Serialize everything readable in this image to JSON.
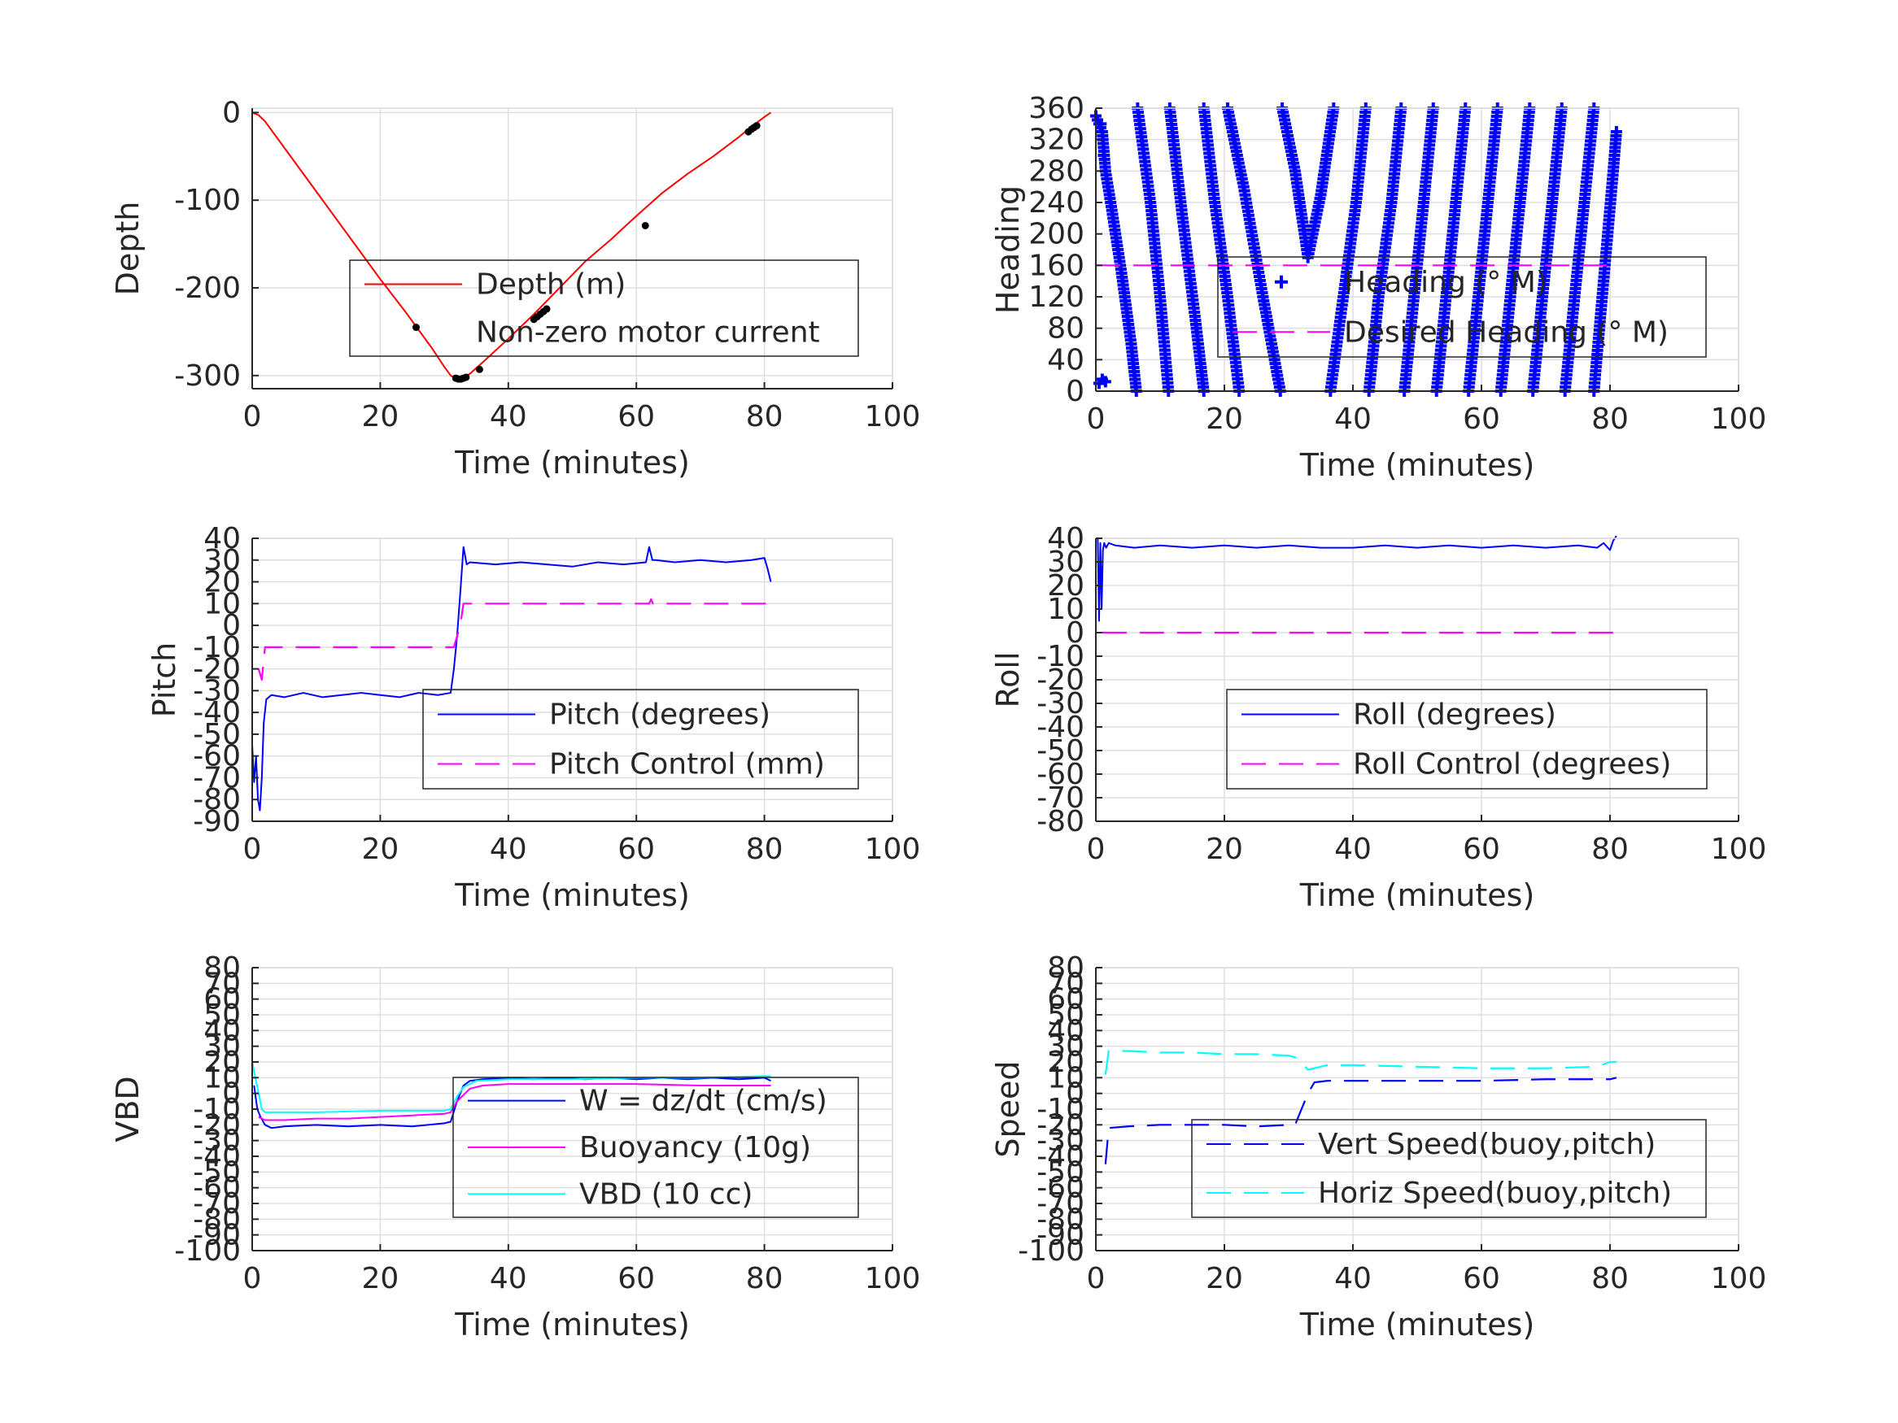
{
  "chart_data": [
    {
      "id": "depth",
      "type": "line",
      "xlabel": "Time (minutes)",
      "ylabel": "Depth",
      "xlim": [
        0,
        100
      ],
      "ylim": [
        -315,
        5
      ],
      "xticks": [
        0,
        20,
        40,
        60,
        80,
        100
      ],
      "yticks": [
        0,
        -100,
        -200,
        -300
      ],
      "grid": true,
      "legend": {
        "placement": "center-right"
      },
      "series": [
        {
          "name": "Depth (m)",
          "style": "line",
          "dash": "",
          "color": "#ff0000",
          "x": [
            0,
            1,
            2,
            4,
            8,
            12,
            16,
            20,
            24,
            26,
            28,
            30,
            31,
            32,
            33,
            34,
            36,
            40,
            44,
            48,
            52,
            56,
            60,
            64,
            68,
            72,
            76,
            78,
            80,
            81
          ],
          "y": [
            0,
            -3,
            -10,
            -30,
            -70,
            -110,
            -150,
            -190,
            -228,
            -248,
            -268,
            -290,
            -300,
            -304,
            -302,
            -298,
            -285,
            -258,
            -230,
            -200,
            -170,
            -145,
            -118,
            -92,
            -70,
            -50,
            -28,
            -16,
            -5,
            0
          ]
        },
        {
          "name": "Non-zero motor current",
          "style": "markers",
          "marker": "dot",
          "color": "#000000",
          "x": [
            25.6,
            31.8,
            32.2,
            32.6,
            33.0,
            33.4,
            35.5,
            44.0,
            44.5,
            45.0,
            45.5,
            46.0,
            61.4,
            77.5,
            78.0,
            78.4,
            78.8
          ],
          "y": [
            -245,
            -303,
            -304,
            -304,
            -303,
            -302,
            -293,
            -236,
            -233,
            -230,
            -227,
            -224,
            -129,
            -22,
            -19,
            -17,
            -15
          ]
        }
      ]
    },
    {
      "id": "heading",
      "type": "scatter",
      "xlabel": "Time (minutes)",
      "ylabel": "Heading",
      "xlim": [
        0,
        100
      ],
      "ylim": [
        0,
        360
      ],
      "xticks": [
        0,
        20,
        40,
        60,
        80,
        100
      ],
      "yticks": [
        0,
        40,
        80,
        120,
        160,
        200,
        240,
        280,
        320,
        360
      ],
      "grid": true,
      "legend": {
        "placement": "center-right"
      },
      "series": [
        {
          "name": "Heading (° M)",
          "style": "markers",
          "marker": "plus",
          "color": "#0000ff",
          "segments": [
            [
              [
                0,
                350
              ],
              [
                1,
                330
              ],
              [
                1.5,
                280
              ],
              [
                2.5,
                230
              ],
              [
                4,
                150
              ],
              [
                5.5,
                60
              ],
              [
                6.3,
                0
              ]
            ],
            [
              [
                6.5,
                360
              ],
              [
                8.5,
                240
              ],
              [
                10,
                120
              ],
              [
                11.3,
                0
              ]
            ],
            [
              [
                11.5,
                360
              ],
              [
                13.5,
                220
              ],
              [
                15.5,
                90
              ],
              [
                16.8,
                0
              ]
            ],
            [
              [
                16.8,
                360
              ],
              [
                18.5,
                240
              ],
              [
                20.5,
                120
              ],
              [
                22.3,
                0
              ]
            ],
            [
              [
                20.5,
                360
              ],
              [
                23,
                260
              ],
              [
                26,
                120
              ],
              [
                28.7,
                0
              ]
            ],
            [
              [
                29,
                360
              ],
              [
                31,
                280
              ],
              [
                33,
                170
              ],
              [
                35,
                250
              ],
              [
                37,
                360
              ]
            ],
            [
              [
                36.5,
                0
              ],
              [
                38.5,
                120
              ],
              [
                40.5,
                240
              ],
              [
                42,
                360
              ]
            ],
            [
              [
                42.5,
                0
              ],
              [
                44,
                120
              ],
              [
                46,
                240
              ],
              [
                47.5,
                360
              ]
            ],
            [
              [
                48,
                0
              ],
              [
                49.5,
                120
              ],
              [
                51,
                240
              ],
              [
                52.5,
                360
              ]
            ],
            [
              [
                53,
                0
              ],
              [
                54.5,
                120
              ],
              [
                56,
                240
              ],
              [
                57.5,
                360
              ]
            ],
            [
              [
                58,
                0
              ],
              [
                59.5,
                120
              ],
              [
                61,
                240
              ],
              [
                62.5,
                360
              ]
            ],
            [
              [
                63,
                0
              ],
              [
                64.5,
                120
              ],
              [
                66,
                240
              ],
              [
                67.5,
                360
              ]
            ],
            [
              [
                68,
                0
              ],
              [
                69.5,
                120
              ],
              [
                71,
                240
              ],
              [
                72.5,
                360
              ]
            ],
            [
              [
                73,
                0
              ],
              [
                74.5,
                120
              ],
              [
                76,
                240
              ],
              [
                77.5,
                360
              ]
            ],
            [
              [
                77.5,
                0
              ],
              [
                79,
                140
              ],
              [
                80.5,
                280
              ],
              [
                81,
                330
              ]
            ]
          ],
          "extra_points": [
            [
              0.5,
              10
            ],
            [
              1,
              15
            ],
            [
              1.5,
              12
            ],
            [
              0.8,
              340
            ],
            [
              1.2,
              300
            ]
          ]
        },
        {
          "name": "Desired Heading (° M)",
          "style": "line",
          "dash": "30 16",
          "color": "#ff00ff",
          "x": [
            0,
            81
          ],
          "y": [
            160,
            160
          ]
        }
      ]
    },
    {
      "id": "pitch",
      "type": "line",
      "xlabel": "Time (minutes)",
      "ylabel": "Pitch",
      "xlim": [
        0,
        100
      ],
      "ylim": [
        -90,
        40
      ],
      "xticks": [
        0,
        20,
        40,
        60,
        80,
        100
      ],
      "yticks": [
        -90,
        -80,
        -70,
        -60,
        -50,
        -40,
        -30,
        -20,
        -10,
        0,
        10,
        20,
        30,
        40
      ],
      "grid": true,
      "legend": {
        "placement": "center-right"
      },
      "series": [
        {
          "name": "Pitch (degrees)",
          "style": "line",
          "dash": "",
          "color": "#0000ff",
          "x": [
            0,
            0.3,
            0.6,
            0.9,
            1.2,
            1.5,
            1.8,
            2.2,
            3,
            5,
            8,
            11,
            14,
            17,
            20,
            23,
            26,
            29,
            31,
            31.5,
            32,
            32.5,
            33,
            33.5,
            34,
            38,
            42,
            46,
            50,
            54,
            58,
            61.5,
            62,
            62.5,
            63,
            66,
            70,
            74,
            78,
            80,
            80.5,
            81
          ],
          "y": [
            -55,
            -72,
            -60,
            -80,
            -85,
            -70,
            -45,
            -34,
            -32,
            -33,
            -31,
            -33,
            -32,
            -31,
            -32,
            -33,
            -31,
            -32,
            -31,
            -20,
            -5,
            15,
            36,
            28,
            29,
            28,
            29,
            28,
            27,
            29,
            28,
            29,
            36,
            30,
            30,
            29,
            30,
            29,
            30,
            31,
            26,
            20
          ]
        },
        {
          "name": "Pitch Control (mm)",
          "style": "line",
          "dash": "30 16",
          "color": "#ff00ff",
          "x": [
            1,
            1.5,
            2,
            5,
            10,
            15,
            20,
            25,
            30,
            31.5,
            32,
            32.5,
            33,
            35,
            45,
            55,
            62,
            62.3,
            62.6,
            65,
            75,
            81
          ],
          "y": [
            -20,
            -25,
            -10,
            -10,
            -10,
            -10,
            -10,
            -10,
            -10,
            -10,
            -5,
            0,
            10,
            10,
            10,
            10,
            10,
            12,
            10,
            10,
            10,
            10
          ]
        }
      ]
    },
    {
      "id": "roll",
      "type": "line",
      "xlabel": "Time (minutes)",
      "ylabel": "Roll",
      "xlim": [
        0,
        100
      ],
      "ylim": [
        -80,
        40
      ],
      "xticks": [
        0,
        20,
        40,
        60,
        80,
        100
      ],
      "yticks": [
        -80,
        -70,
        -60,
        -50,
        -40,
        -30,
        -20,
        -10,
        0,
        10,
        20,
        30,
        40
      ],
      "grid": true,
      "legend": {
        "placement": "center-right"
      },
      "series": [
        {
          "name": "Roll (degrees)",
          "style": "line",
          "dash": "",
          "color": "#0000ff",
          "x": [
            0.3,
            0.5,
            0.7,
            0.9,
            1.1,
            1.3,
            1.6,
            2,
            3,
            6,
            10,
            15,
            20,
            25,
            30,
            35,
            40,
            45,
            50,
            55,
            60,
            65,
            70,
            75,
            78,
            79,
            80,
            80.5,
            81
          ],
          "y": [
            40,
            5,
            38,
            10,
            35,
            38,
            36,
            38,
            37,
            36,
            37,
            36,
            37,
            36,
            37,
            36,
            36,
            37,
            36,
            37,
            36,
            37,
            36,
            37,
            36,
            38,
            35,
            39,
            41
          ]
        },
        {
          "name": "Roll Control (degrees)",
          "style": "line",
          "dash": "30 16",
          "color": "#ff00ff",
          "x": [
            1,
            81
          ],
          "y": [
            0,
            0
          ]
        }
      ]
    },
    {
      "id": "vbd",
      "type": "line",
      "xlabel": "Time (minutes)",
      "ylabel": "VBD",
      "xlim": [
        0,
        100
      ],
      "ylim": [
        -100,
        80
      ],
      "xticks": [
        0,
        20,
        40,
        60,
        80,
        100
      ],
      "yticks": [
        -100,
        -90,
        -80,
        -70,
        -60,
        -50,
        -40,
        -30,
        -20,
        -10,
        0,
        10,
        20,
        30,
        40,
        50,
        60,
        70,
        80
      ],
      "grid": true,
      "legend": {
        "placement": "center-right"
      },
      "series": [
        {
          "name": "W = dz/dt (cm/s)",
          "style": "line",
          "dash": "",
          "color": "#0000ff",
          "x": [
            0.3,
            0.8,
            1.3,
            2,
            3,
            5,
            10,
            15,
            20,
            25,
            30,
            31,
            32,
            33,
            34,
            36,
            40,
            44,
            48,
            52,
            56,
            60,
            64,
            68,
            72,
            76,
            80,
            81
          ],
          "y": [
            5,
            -10,
            -15,
            -20,
            -22,
            -21,
            -20,
            -21,
            -20,
            -21,
            -19,
            -18,
            -5,
            5,
            8,
            9,
            10,
            9,
            10,
            9,
            10,
            9,
            10,
            9,
            10,
            9,
            10,
            8
          ]
        },
        {
          "name": "Buoyancy (10g)",
          "style": "line",
          "dash": "",
          "color": "#ff00ff",
          "x": [
            1,
            2,
            5,
            10,
            15,
            20,
            25,
            30,
            31,
            32,
            34,
            36,
            40,
            50,
            60,
            70,
            80,
            81
          ],
          "y": [
            -15,
            -17,
            -17,
            -16,
            -16,
            -15,
            -14,
            -13,
            -12,
            -5,
            3,
            5,
            6,
            6,
            6,
            5,
            5,
            5
          ]
        },
        {
          "name": "VBD (10 cc)",
          "style": "line",
          "dash": "",
          "color": "#00ffff",
          "x": [
            0,
            0.5,
            1,
            1.5,
            2,
            5,
            10,
            20,
            30,
            31,
            32,
            33,
            35,
            40,
            50,
            60,
            70,
            80,
            81
          ],
          "y": [
            20,
            10,
            0,
            -10,
            -12,
            -12,
            -12,
            -11,
            -11,
            -10,
            -2,
            4,
            8,
            9,
            9,
            10,
            10,
            11,
            11
          ]
        }
      ]
    },
    {
      "id": "speed",
      "type": "line",
      "xlabel": "Time (minutes)",
      "ylabel": "Speed",
      "xlim": [
        0,
        100
      ],
      "ylim": [
        -100,
        80
      ],
      "xticks": [
        0,
        20,
        40,
        60,
        80,
        100
      ],
      "yticks": [
        -100,
        -90,
        -80,
        -70,
        -60,
        -50,
        -40,
        -30,
        -20,
        -10,
        0,
        10,
        20,
        30,
        40,
        50,
        60,
        70,
        80
      ],
      "grid": true,
      "legend": {
        "placement": "center-right"
      },
      "series": [
        {
          "name": "Vert Speed(buoy,pitch)",
          "style": "line",
          "dash": "30 16",
          "color": "#0000ff",
          "x": [
            1.5,
            2,
            5,
            10,
            15,
            20,
            25,
            30,
            31,
            32,
            33,
            34,
            36,
            40,
            50,
            60,
            70,
            80,
            81
          ],
          "y": [
            -45,
            -22,
            -21,
            -20,
            -20,
            -20,
            -21,
            -20,
            -20,
            -10,
            0,
            7,
            8,
            8,
            8,
            8,
            9,
            9,
            10
          ]
        },
        {
          "name": "Horiz Speed(buoy,pitch)",
          "style": "line",
          "dash": "30 16",
          "color": "#00ffff",
          "x": [
            1.5,
            2,
            5,
            10,
            15,
            20,
            25,
            30,
            31,
            32,
            33,
            34,
            36,
            40,
            50,
            60,
            70,
            78,
            80,
            81
          ],
          "y": [
            12,
            27,
            27,
            26,
            26,
            25,
            25,
            24,
            23,
            20,
            15,
            16,
            18,
            18,
            17,
            16,
            16,
            17,
            20,
            20
          ]
        }
      ]
    }
  ]
}
